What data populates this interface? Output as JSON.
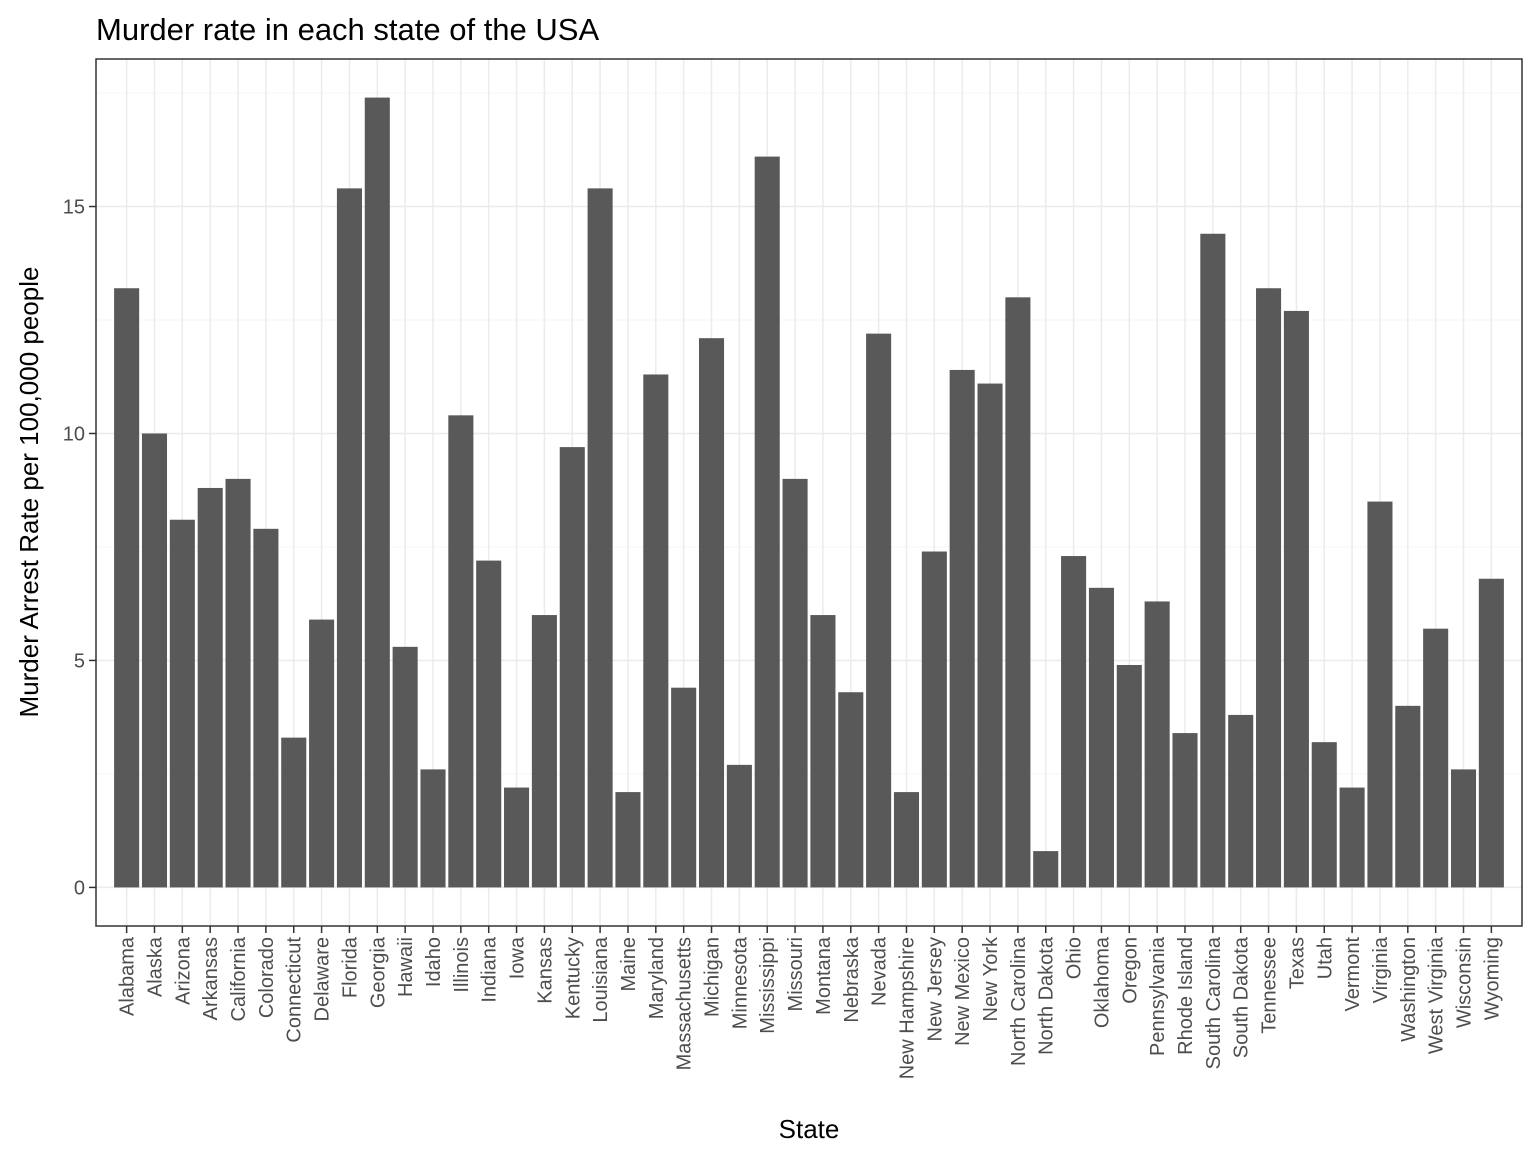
{
  "chart_data": {
    "type": "bar",
    "title": "Murder rate in each state of the USA",
    "xlabel": "State",
    "ylabel": "Murder Arrest Rate per 100,000 people",
    "ylim": [
      -0.85,
      18.25
    ],
    "yticks": [
      0,
      5,
      10,
      15
    ],
    "grid": true,
    "bar_color": "#595959",
    "panel_border_color": "#333333",
    "grid_major_color": "#ebebeb",
    "grid_minor_color": "#f4f4f4",
    "categories": [
      "Alabama",
      "Alaska",
      "Arizona",
      "Arkansas",
      "California",
      "Colorado",
      "Connecticut",
      "Delaware",
      "Florida",
      "Georgia",
      "Hawaii",
      "Idaho",
      "Illinois",
      "Indiana",
      "Iowa",
      "Kansas",
      "Kentucky",
      "Louisiana",
      "Maine",
      "Maryland",
      "Massachusetts",
      "Michigan",
      "Minnesota",
      "Mississippi",
      "Missouri",
      "Montana",
      "Nebraska",
      "Nevada",
      "New Hampshire",
      "New Jersey",
      "New Mexico",
      "New York",
      "North Carolina",
      "North Dakota",
      "Ohio",
      "Oklahoma",
      "Oregon",
      "Pennsylvania",
      "Rhode Island",
      "South Carolina",
      "South Dakota",
      "Tennessee",
      "Texas",
      "Utah",
      "Vermont",
      "Virginia",
      "Washington",
      "West Virginia",
      "Wisconsin",
      "Wyoming"
    ],
    "values": [
      13.2,
      10.0,
      8.1,
      8.8,
      9.0,
      7.9,
      3.3,
      5.9,
      15.4,
      17.4,
      5.3,
      2.6,
      10.4,
      7.2,
      2.2,
      6.0,
      9.7,
      15.4,
      2.1,
      11.3,
      4.4,
      12.1,
      2.7,
      16.1,
      9.0,
      6.0,
      4.3,
      12.2,
      2.1,
      7.4,
      11.4,
      11.1,
      13.0,
      0.8,
      7.3,
      6.6,
      4.9,
      6.3,
      3.4,
      14.4,
      3.8,
      13.2,
      12.7,
      3.2,
      2.2,
      8.5,
      4.0,
      5.7,
      2.6,
      6.8
    ]
  }
}
